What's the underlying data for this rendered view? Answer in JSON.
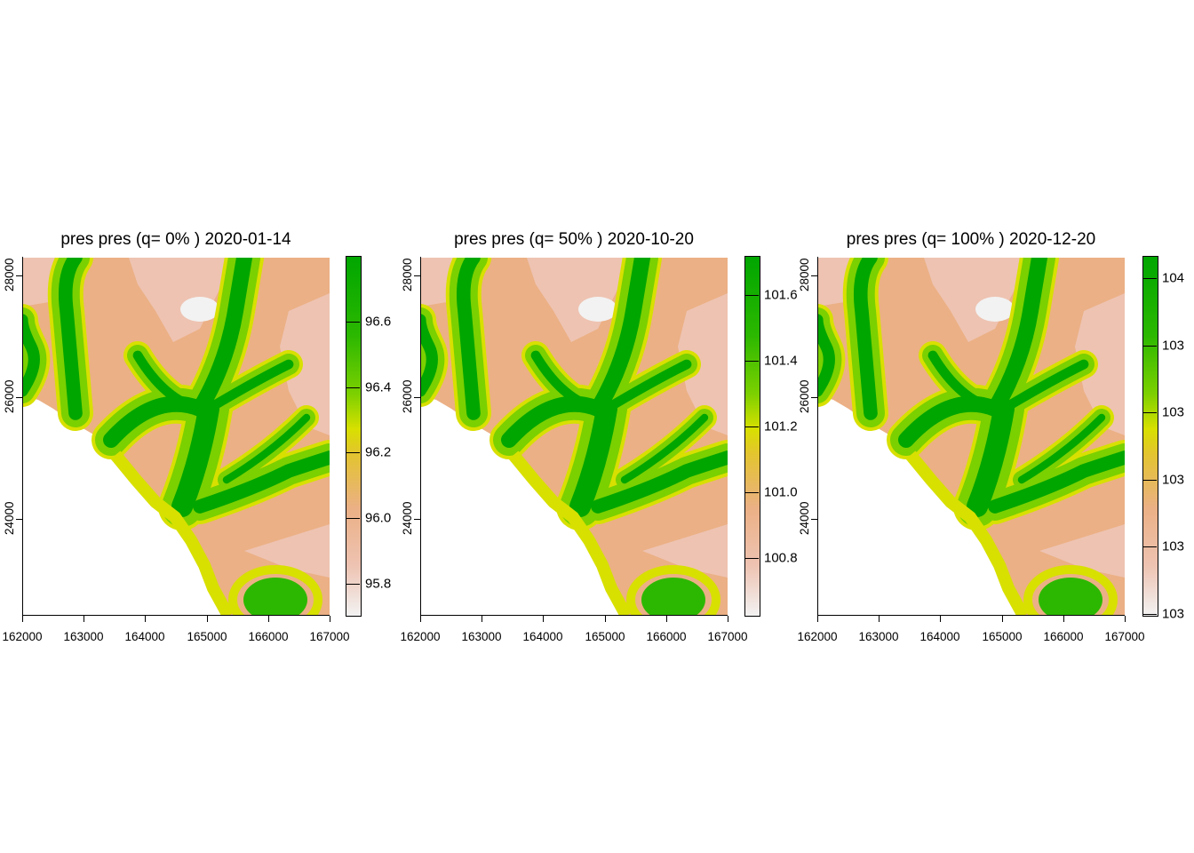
{
  "chart_data": [
    {
      "type": "heatmap",
      "title": "pres pres (q= 0% ) 2020-01-14",
      "x_ticks": [
        "162000",
        "163000",
        "164000",
        "165000",
        "166000",
        "167000"
      ],
      "y_ticks": [
        "24000",
        "26000",
        "28000"
      ],
      "xlim": [
        162000,
        167000
      ],
      "ylim": [
        22400,
        28300
      ],
      "legend_ticks": [
        "95.8",
        "96.0",
        "96.2",
        "96.4",
        "96.6"
      ],
      "legend_range": [
        95.7,
        96.8
      ],
      "colors": [
        "#f2f2f2",
        "#eec3b2",
        "#ebb085",
        "#e3c42f",
        "#d8e000",
        "#7bd000",
        "#2cb800",
        "#00a600"
      ]
    },
    {
      "type": "heatmap",
      "title": "pres pres (q= 50% ) 2020-10-20",
      "x_ticks": [
        "162000",
        "163000",
        "164000",
        "165000",
        "166000",
        "167000"
      ],
      "y_ticks": [
        "24000",
        "26000",
        "28000"
      ],
      "xlim": [
        162000,
        167000
      ],
      "ylim": [
        22400,
        28300
      ],
      "legend_ticks": [
        "100.8",
        "101.0",
        "101.2",
        "101.4",
        "101.6"
      ],
      "legend_range": [
        100.62,
        101.72
      ],
      "colors": [
        "#f2f2f2",
        "#eec3b2",
        "#ebb085",
        "#e3c42f",
        "#d8e000",
        "#7bd000",
        "#2cb800",
        "#00a600"
      ]
    },
    {
      "type": "heatmap",
      "title": "pres pres (q= 100% ) 2020-12-20",
      "x_ticks": [
        "162000",
        "163000",
        "164000",
        "165000",
        "166000",
        "167000"
      ],
      "y_ticks": [
        "24000",
        "26000",
        "28000"
      ],
      "xlim": [
        162000,
        167000
      ],
      "ylim": [
        22400,
        28300
      ],
      "legend_ticks": [
        "103",
        "103",
        "103",
        "103",
        "103",
        "104"
      ],
      "legend_range": [
        102.95,
        104.05
      ],
      "colors": [
        "#f2f2f2",
        "#eec3b2",
        "#ebb085",
        "#e3c42f",
        "#d8e000",
        "#7bd000",
        "#2cb800",
        "#00a600"
      ]
    }
  ]
}
